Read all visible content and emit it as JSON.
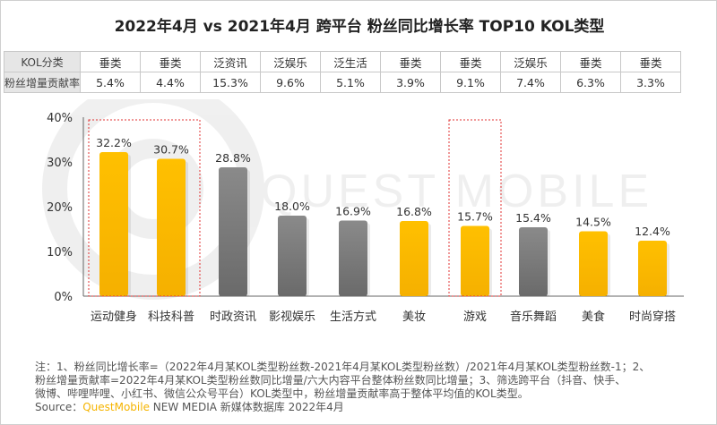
{
  "title": "2022年4月 vs 2021年4月 跨平台 粉丝同比增长率 TOP10 KOL类型",
  "table": {
    "row1_header": "KOL分类",
    "row1": [
      "垂类",
      "垂类",
      "泛资讯",
      "泛娱乐",
      "泛生活",
      "垂类",
      "垂类",
      "泛娱乐",
      "垂类",
      "垂类"
    ],
    "row2_header": "粉丝增量贡献率",
    "row2": [
      "5.4%",
      "4.4%",
      "15.3%",
      "9.6%",
      "5.1%",
      "3.9%",
      "9.1%",
      "7.4%",
      "6.3%",
      "3.3%"
    ]
  },
  "chart_data": {
    "type": "bar",
    "categories": [
      "运动健身",
      "科技科普",
      "时政资讯",
      "影视娱乐",
      "生活方式",
      "美妆",
      "游戏",
      "音乐舞蹈",
      "美食",
      "时尚穿搭"
    ],
    "values": [
      32.2,
      30.7,
      28.8,
      18.0,
      16.9,
      16.8,
      15.7,
      15.4,
      14.5,
      12.4
    ],
    "data_labels": [
      "32.2%",
      "30.7%",
      "28.8%",
      "18.0%",
      "16.9%",
      "16.8%",
      "15.7%",
      "15.4%",
      "14.5%",
      "12.4%"
    ],
    "bar_colors": [
      "#FFC000",
      "#FFC000",
      "#7f7f7f",
      "#7f7f7f",
      "#7f7f7f",
      "#FFC000",
      "#FFC000",
      "#7f7f7f",
      "#FFC000",
      "#FFC000"
    ],
    "highlighted": [
      "运动健身",
      "科技科普",
      "游戏"
    ],
    "highlight_color": "#e03030",
    "ylim": [
      0,
      40
    ],
    "yticks": [
      "0%",
      "10%",
      "20%",
      "30%",
      "40%"
    ],
    "grid": false
  },
  "watermark": "QUEST MOBILE",
  "note": {
    "lines": [
      "注：1、粉丝同比增长率=（2022年4月某KOL类型粉丝数-2021年4月某KOL类型粉丝数）/2021年4月某KOL类型粉丝数-1；2、",
      "粉丝增量贡献率=2022年4月某KOL类型粉丝数同比增量/六大内容平台整体粉丝数同比增量；3、筛选跨平台（抖音、快手、",
      "微博、哔哩哔哩、小红书、微信公众号平台）KOL类型中，粉丝增量贡献率高于整体平均值的KOL类型。"
    ],
    "source_label": "Source：",
    "source_brand": "QuestMobile",
    "source_rest": " NEW MEDIA 新媒体数据库 2022年4月"
  }
}
